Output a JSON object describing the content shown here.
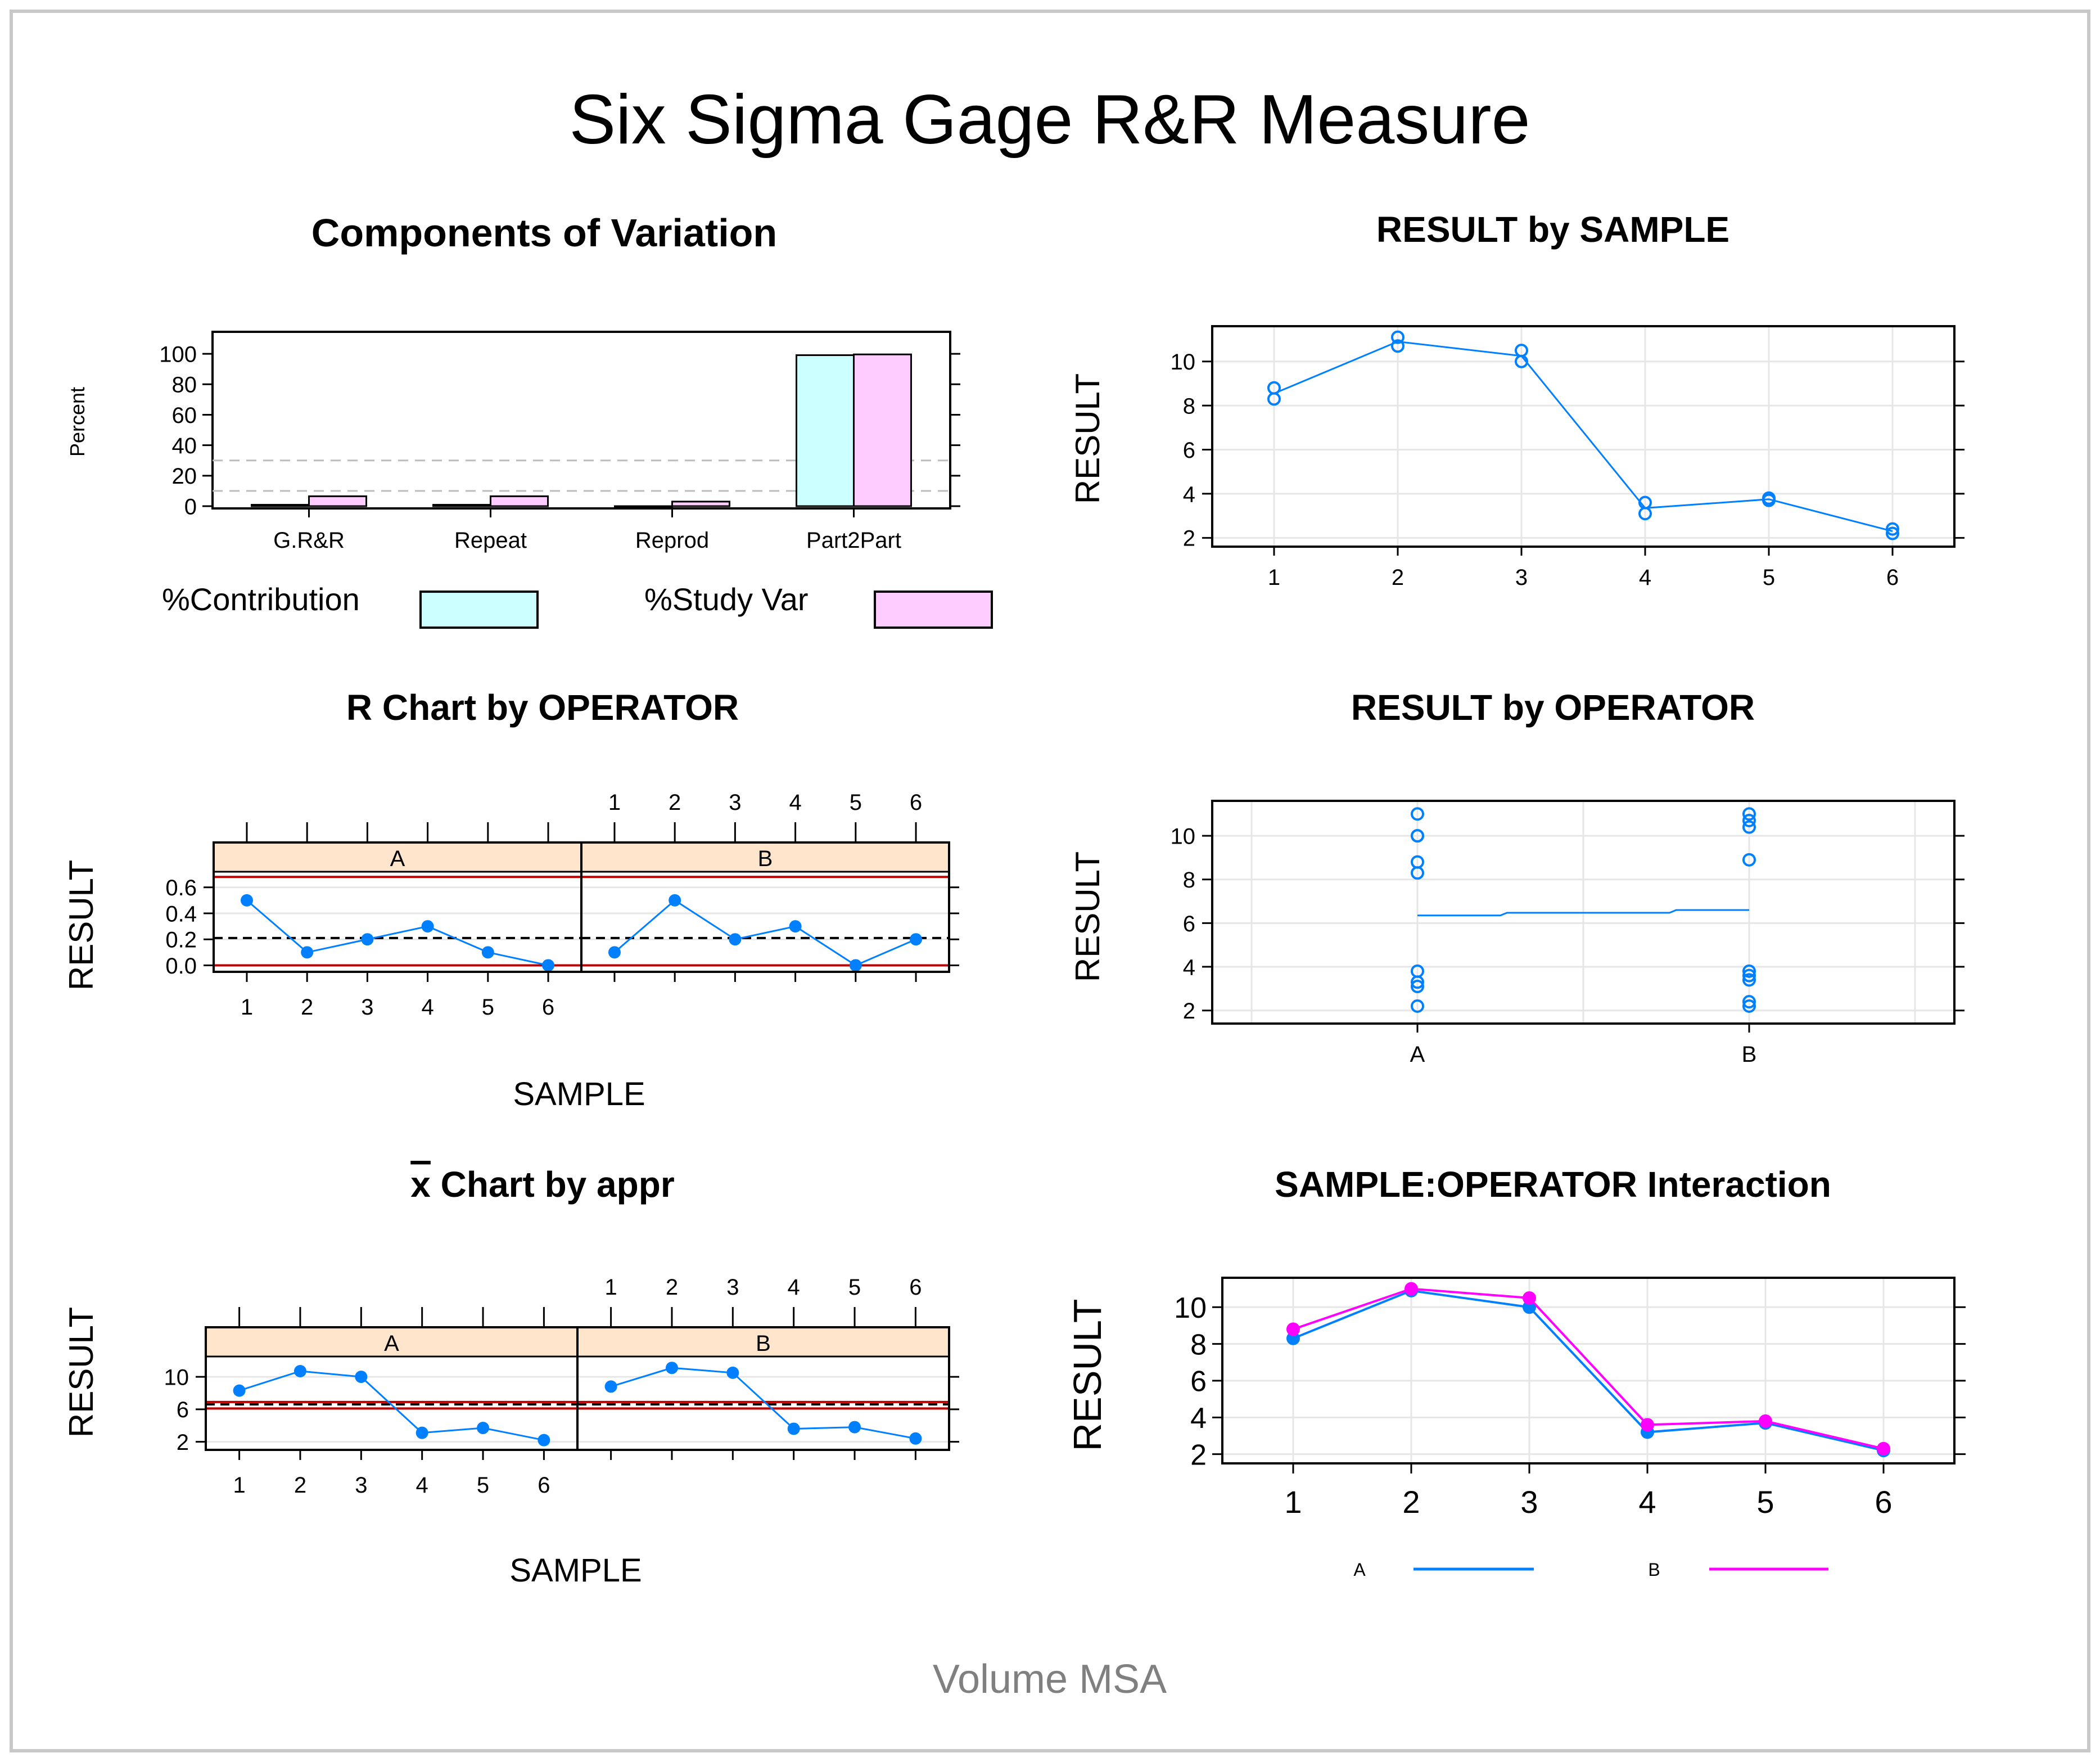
{
  "title": "Six Sigma Gage R&R Measure",
  "subtitle": "Volume MSA",
  "colors": {
    "contribution": "#ccffff",
    "study_var": "#ffccff",
    "strip": "#ffe5cc",
    "operator_A": "#0080ff",
    "operator_B": "#ff00ff",
    "limit": "#c00000",
    "grid": "#e6e6e6",
    "reference": "#bdbdbd"
  },
  "chart_data": [
    {
      "id": "components",
      "type": "bar",
      "title": "Components of Variation",
      "ylabel": "Percent",
      "xlabel": "",
      "ylim": [
        0,
        110
      ],
      "yticks": [
        "0",
        "20",
        "40",
        "60",
        "80",
        "100"
      ],
      "categories": [
        "G.R&R",
        "Repeat",
        "Reprod",
        "Part2Part"
      ],
      "series": [
        {
          "name": "%Contribution",
          "values": [
            0.9,
            0.9,
            0.0,
            99.1
          ]
        },
        {
          "name": "%Study Var",
          "values": [
            6.5,
            6.5,
            3.0,
            99.6
          ]
        }
      ],
      "reference_lines": [
        10,
        30
      ],
      "legend_position": "bottom"
    },
    {
      "id": "by_sample",
      "type": "line",
      "title": "RESULT by SAMPLE",
      "ylabel": "RESULT",
      "xlabel": "",
      "x_ticks": [
        "1",
        "2",
        "3",
        "4",
        "5",
        "6"
      ],
      "yticks": [
        "2",
        "4",
        "6",
        "8",
        "10"
      ],
      "ylim": [
        1.6,
        11.6
      ],
      "points": [
        [
          1,
          8.3
        ],
        [
          1,
          8.8
        ],
        [
          2,
          10.7
        ],
        [
          2,
          11.1
        ],
        [
          3,
          10.0
        ],
        [
          3,
          10.5
        ],
        [
          4,
          3.1
        ],
        [
          4,
          3.6
        ],
        [
          5,
          3.7
        ],
        [
          5,
          3.8
        ],
        [
          6,
          2.2
        ],
        [
          6,
          2.4
        ]
      ],
      "mean_line": [
        8.55,
        10.9,
        10.25,
        3.35,
        3.75,
        2.3
      ]
    },
    {
      "id": "r_chart",
      "type": "line",
      "title": "R Chart by OPERATOR",
      "ylabel": "RESULT",
      "xlabel": "SAMPLE",
      "panels": [
        "A",
        "B"
      ],
      "x_ticks": [
        "1",
        "2",
        "3",
        "4",
        "5",
        "6"
      ],
      "yticks": [
        "0.0",
        "0.2",
        "0.4",
        "0.6"
      ],
      "ylim": [
        -0.05,
        0.72
      ],
      "series": [
        {
          "name": "A",
          "values": [
            0.5,
            0.1,
            0.2,
            0.3,
            0.1,
            0.0
          ]
        },
        {
          "name": "B",
          "values": [
            0.1,
            0.5,
            0.2,
            0.3,
            0.0,
            0.2
          ]
        }
      ],
      "center_line": 0.21,
      "ucl": 0.68,
      "lcl": 0.0
    },
    {
      "id": "by_operator",
      "type": "scatter",
      "title": "RESULT by OPERATOR",
      "ylabel": "RESULT",
      "xlabel": "",
      "categories": [
        "A",
        "B"
      ],
      "yticks": [
        "2",
        "4",
        "6",
        "8",
        "10"
      ],
      "ylim": [
        1.4,
        11.6
      ],
      "series": [
        {
          "name": "A",
          "values": [
            11.0,
            10.0,
            10.0,
            8.8,
            8.3,
            3.8,
            3.3,
            3.1,
            2.2
          ]
        },
        {
          "name": "B",
          "values": [
            11.0,
            10.7,
            10.4,
            8.9,
            3.8,
            3.6,
            3.4,
            2.4,
            2.2
          ]
        }
      ],
      "means": [
        6.35,
        6.6
      ]
    },
    {
      "id": "xbar_chart",
      "type": "line",
      "title": "x Chart by appr",
      "title_overline_char": "x",
      "title_rest": " Chart by appr",
      "ylabel": "RESULT",
      "xlabel": "SAMPLE",
      "panels": [
        "A",
        "B"
      ],
      "x_ticks": [
        "1",
        "2",
        "3",
        "4",
        "5",
        "6"
      ],
      "yticks": [
        "2",
        "6",
        "10"
      ],
      "ylim": [
        1.0,
        12.5
      ],
      "series": [
        {
          "name": "A",
          "values": [
            8.3,
            10.7,
            10.0,
            3.1,
            3.7,
            2.2
          ]
        },
        {
          "name": "B",
          "values": [
            8.8,
            11.1,
            10.5,
            3.6,
            3.8,
            2.4
          ]
        }
      ],
      "center_line": 6.6,
      "ucl": 6.9,
      "lcl": 6.1
    },
    {
      "id": "interaction",
      "type": "line",
      "title": "SAMPLE:OPERATOR Interaction",
      "ylabel": "RESULT",
      "xlabel": "",
      "x_ticks": [
        "1",
        "2",
        "3",
        "4",
        "5",
        "6"
      ],
      "yticks": [
        "2",
        "4",
        "6",
        "8",
        "10"
      ],
      "ylim": [
        1.5,
        11.6
      ],
      "series": [
        {
          "name": "A",
          "values": [
            8.3,
            10.9,
            10.0,
            3.2,
            3.7,
            2.2
          ]
        },
        {
          "name": "B",
          "values": [
            8.8,
            11.0,
            10.5,
            3.6,
            3.8,
            2.3
          ]
        }
      ],
      "legend_position": "bottom"
    }
  ]
}
